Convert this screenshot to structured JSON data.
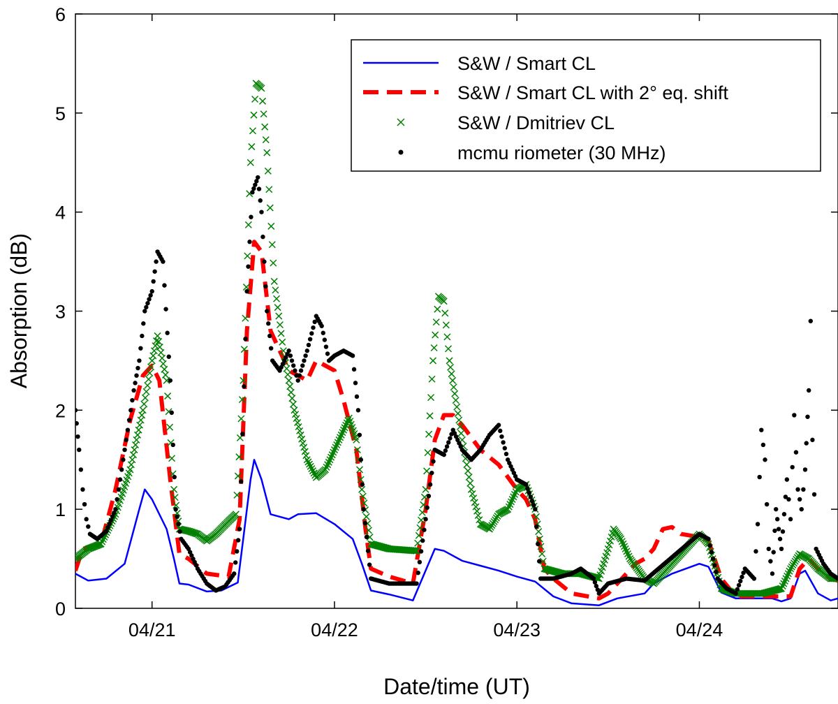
{
  "chart_data": {
    "type": "line",
    "xlabel": "Date/time (UT)",
    "ylabel": "Absorption (dB)",
    "x_unit": "day of April 2014 (UT)",
    "xlim": [
      20.58,
      24.76
    ],
    "ylim": [
      0,
      6
    ],
    "x_ticks": [
      21,
      22,
      23,
      24
    ],
    "x_tick_labels": [
      "04/21",
      "04/22",
      "04/23",
      "04/24"
    ],
    "y_ticks": [
      0,
      1,
      2,
      3,
      4,
      5,
      6
    ],
    "y_tick_labels": [
      "0",
      "1",
      "2",
      "3",
      "4",
      "5",
      "6"
    ],
    "grid": false,
    "legend_position": "top-right",
    "series": [
      {
        "name": "S&W / Smart CL",
        "style": "solid-line",
        "color": "#0000ff",
        "points": [
          [
            20.58,
            0.35
          ],
          [
            20.65,
            0.28
          ],
          [
            20.75,
            0.3
          ],
          [
            20.85,
            0.45
          ],
          [
            20.93,
            1.0
          ],
          [
            20.96,
            1.2
          ],
          [
            21.0,
            1.1
          ],
          [
            21.08,
            0.8
          ],
          [
            21.12,
            0.5
          ],
          [
            21.15,
            0.25
          ],
          [
            21.2,
            0.24
          ],
          [
            21.3,
            0.17
          ],
          [
            21.38,
            0.18
          ],
          [
            21.47,
            0.26
          ],
          [
            21.5,
            0.7
          ],
          [
            21.54,
            1.3
          ],
          [
            21.56,
            1.5
          ],
          [
            21.6,
            1.3
          ],
          [
            21.65,
            0.95
          ],
          [
            21.75,
            0.9
          ],
          [
            21.8,
            0.95
          ],
          [
            21.9,
            0.96
          ],
          [
            22.0,
            0.85
          ],
          [
            22.1,
            0.7
          ],
          [
            22.15,
            0.45
          ],
          [
            22.2,
            0.18
          ],
          [
            22.3,
            0.14
          ],
          [
            22.43,
            0.08
          ],
          [
            22.55,
            0.6
          ],
          [
            22.6,
            0.58
          ],
          [
            22.7,
            0.48
          ],
          [
            22.8,
            0.43
          ],
          [
            22.9,
            0.38
          ],
          [
            23.0,
            0.32
          ],
          [
            23.1,
            0.27
          ],
          [
            23.2,
            0.12
          ],
          [
            23.3,
            0.05
          ],
          [
            23.45,
            0.03
          ],
          [
            23.55,
            0.1
          ],
          [
            23.7,
            0.15
          ],
          [
            23.75,
            0.25
          ],
          [
            23.85,
            0.35
          ],
          [
            24.0,
            0.45
          ],
          [
            24.05,
            0.42
          ],
          [
            24.12,
            0.16
          ],
          [
            24.2,
            0.1
          ],
          [
            24.3,
            0.1
          ],
          [
            24.4,
            0.1
          ],
          [
            24.45,
            0.07
          ],
          [
            24.5,
            0.1
          ],
          [
            24.55,
            0.35
          ],
          [
            24.58,
            0.38
          ],
          [
            24.65,
            0.15
          ],
          [
            24.72,
            0.08
          ],
          [
            24.76,
            0.1
          ]
        ]
      },
      {
        "name": "S&W / Smart CL with 2° eq. shift",
        "style": "dashed-line",
        "color": "#ff0000",
        "points": [
          [
            20.58,
            0.38
          ],
          [
            20.62,
            0.6
          ],
          [
            20.72,
            0.65
          ],
          [
            20.8,
            1.2
          ],
          [
            20.88,
            1.9
          ],
          [
            20.95,
            2.35
          ],
          [
            21.0,
            2.45
          ],
          [
            21.04,
            2.3
          ],
          [
            21.1,
            1.3
          ],
          [
            21.15,
            0.55
          ],
          [
            21.2,
            0.5
          ],
          [
            21.3,
            0.35
          ],
          [
            21.42,
            0.32
          ],
          [
            21.48,
            0.9
          ],
          [
            21.52,
            2.8
          ],
          [
            21.56,
            3.7
          ],
          [
            21.6,
            3.6
          ],
          [
            21.65,
            2.8
          ],
          [
            21.75,
            2.4
          ],
          [
            21.85,
            2.3
          ],
          [
            21.9,
            2.5
          ],
          [
            22.0,
            2.4
          ],
          [
            22.05,
            2.1
          ],
          [
            22.12,
            1.6
          ],
          [
            22.17,
            0.8
          ],
          [
            22.2,
            0.4
          ],
          [
            22.3,
            0.32
          ],
          [
            22.43,
            0.25
          ],
          [
            22.5,
            1.0
          ],
          [
            22.55,
            1.7
          ],
          [
            22.6,
            1.95
          ],
          [
            22.65,
            1.95
          ],
          [
            22.7,
            1.85
          ],
          [
            22.8,
            1.6
          ],
          [
            22.9,
            1.45
          ],
          [
            23.0,
            1.2
          ],
          [
            23.05,
            1.1
          ],
          [
            23.1,
            0.9
          ],
          [
            23.15,
            0.4
          ],
          [
            23.2,
            0.3
          ],
          [
            23.3,
            0.15
          ],
          [
            23.45,
            0.1
          ],
          [
            23.5,
            0.15
          ],
          [
            23.6,
            0.35
          ],
          [
            23.65,
            0.45
          ],
          [
            23.7,
            0.5
          ],
          [
            23.75,
            0.6
          ],
          [
            23.8,
            0.8
          ],
          [
            23.85,
            0.82
          ],
          [
            23.9,
            0.75
          ],
          [
            24.0,
            0.72
          ],
          [
            24.05,
            0.68
          ],
          [
            24.12,
            0.3
          ],
          [
            24.2,
            0.12
          ],
          [
            24.35,
            0.12
          ],
          [
            24.5,
            0.12
          ],
          [
            24.55,
            0.4
          ],
          [
            24.6,
            0.5
          ],
          [
            24.65,
            0.4
          ],
          [
            24.72,
            0.3
          ],
          [
            24.76,
            0.28
          ]
        ]
      },
      {
        "name": "S&W / Dmitriev CL",
        "style": "x-markers",
        "color": "#008000",
        "points": [
          [
            20.58,
            0.5
          ],
          [
            20.65,
            0.6
          ],
          [
            20.72,
            0.65
          ],
          [
            20.8,
            0.95
          ],
          [
            20.88,
            1.4
          ],
          [
            20.95,
            2.0
          ],
          [
            21.0,
            2.5
          ],
          [
            21.03,
            2.75
          ],
          [
            21.08,
            2.3
          ],
          [
            21.12,
            1.2
          ],
          [
            21.15,
            0.8
          ],
          [
            21.2,
            0.78
          ],
          [
            21.25,
            0.75
          ],
          [
            21.3,
            0.68
          ],
          [
            21.35,
            0.75
          ],
          [
            21.42,
            0.88
          ],
          [
            21.46,
            0.95
          ],
          [
            21.5,
            2.3
          ],
          [
            21.54,
            4.5
          ],
          [
            21.57,
            5.3
          ],
          [
            21.6,
            5.25
          ],
          [
            21.63,
            4.6
          ],
          [
            21.67,
            3.3
          ],
          [
            21.72,
            2.6
          ],
          [
            21.78,
            2.0
          ],
          [
            21.85,
            1.5
          ],
          [
            21.9,
            1.32
          ],
          [
            21.95,
            1.4
          ],
          [
            22.0,
            1.6
          ],
          [
            22.05,
            1.8
          ],
          [
            22.08,
            1.92
          ],
          [
            22.12,
            1.7
          ],
          [
            22.15,
            1.2
          ],
          [
            22.2,
            0.65
          ],
          [
            22.3,
            0.6
          ],
          [
            22.45,
            0.58
          ],
          [
            22.5,
            1.2
          ],
          [
            22.54,
            2.5
          ],
          [
            22.57,
            3.15
          ],
          [
            22.6,
            3.1
          ],
          [
            22.63,
            2.5
          ],
          [
            22.7,
            1.7
          ],
          [
            22.75,
            1.2
          ],
          [
            22.8,
            0.85
          ],
          [
            22.85,
            0.8
          ],
          [
            22.9,
            0.95
          ],
          [
            22.95,
            1.0
          ],
          [
            23.0,
            1.2
          ],
          [
            23.05,
            1.25
          ],
          [
            23.1,
            1.0
          ],
          [
            23.15,
            0.4
          ],
          [
            23.25,
            0.35
          ],
          [
            23.35,
            0.35
          ],
          [
            23.45,
            0.3
          ],
          [
            23.5,
            0.6
          ],
          [
            23.53,
            0.8
          ],
          [
            23.57,
            0.7
          ],
          [
            23.62,
            0.5
          ],
          [
            23.7,
            0.3
          ],
          [
            23.75,
            0.25
          ],
          [
            24.0,
            0.75
          ],
          [
            24.05,
            0.65
          ],
          [
            24.12,
            0.2
          ],
          [
            24.2,
            0.15
          ],
          [
            24.35,
            0.15
          ],
          [
            24.45,
            0.2
          ],
          [
            24.5,
            0.4
          ],
          [
            24.55,
            0.55
          ],
          [
            24.6,
            0.5
          ],
          [
            24.65,
            0.4
          ],
          [
            24.72,
            0.3
          ],
          [
            24.76,
            0.3
          ]
        ]
      },
      {
        "name": "mcmu riometer (30 MHz)",
        "style": "dot-markers",
        "color": "#000000",
        "points": [
          [
            20.58,
            2.0
          ],
          [
            20.6,
            1.6
          ],
          [
            20.62,
            1.2
          ],
          [
            20.64,
            0.9
          ],
          [
            20.66,
            0.75
          ],
          [
            20.7,
            0.7
          ],
          [
            20.75,
            0.78
          ],
          [
            20.8,
            1.0
          ],
          [
            20.85,
            1.6
          ],
          [
            20.9,
            2.2
          ],
          [
            20.93,
            2.5
          ],
          [
            20.96,
            3.0
          ],
          [
            21.0,
            3.2
          ],
          [
            21.03,
            3.6
          ],
          [
            21.06,
            3.5
          ],
          [
            21.1,
            2.3
          ],
          [
            21.13,
            1.0
          ],
          [
            21.16,
            0.7
          ],
          [
            21.2,
            0.6
          ],
          [
            21.25,
            0.4
          ],
          [
            21.3,
            0.25
          ],
          [
            21.35,
            0.18
          ],
          [
            21.4,
            0.22
          ],
          [
            21.45,
            0.35
          ],
          [
            21.48,
            0.8
          ],
          [
            21.52,
            3.2
          ],
          [
            21.55,
            4.2
          ],
          [
            21.58,
            4.35
          ],
          [
            21.6,
            4.0
          ],
          [
            21.63,
            3.0
          ],
          [
            21.66,
            2.5
          ],
          [
            21.7,
            2.4
          ],
          [
            21.75,
            2.6
          ],
          [
            21.8,
            2.3
          ],
          [
            21.85,
            2.6
          ],
          [
            21.9,
            2.95
          ],
          [
            21.93,
            2.85
          ],
          [
            21.97,
            2.5
          ],
          [
            22.0,
            2.55
          ],
          [
            22.05,
            2.6
          ],
          [
            22.1,
            2.55
          ],
          [
            22.13,
            2.0
          ],
          [
            22.16,
            1.0
          ],
          [
            22.2,
            0.3
          ],
          [
            22.3,
            0.25
          ],
          [
            22.45,
            0.25
          ],
          [
            22.5,
            0.9
          ],
          [
            22.55,
            1.6
          ],
          [
            22.6,
            1.55
          ],
          [
            22.65,
            1.8
          ],
          [
            22.7,
            1.6
          ],
          [
            22.75,
            1.5
          ],
          [
            22.8,
            1.6
          ],
          [
            22.85,
            1.75
          ],
          [
            22.9,
            1.85
          ],
          [
            22.95,
            1.5
          ],
          [
            23.0,
            1.3
          ],
          [
            23.05,
            1.25
          ],
          [
            23.1,
            1.0
          ],
          [
            23.13,
            0.3
          ],
          [
            23.2,
            0.3
          ],
          [
            23.3,
            0.35
          ],
          [
            23.35,
            0.4
          ],
          [
            23.42,
            0.3
          ],
          [
            23.45,
            0.15
          ],
          [
            23.5,
            0.25
          ],
          [
            23.6,
            0.3
          ],
          [
            23.7,
            0.28
          ],
          [
            24.0,
            0.75
          ],
          [
            24.05,
            0.7
          ],
          [
            24.1,
            0.3
          ],
          [
            24.15,
            0.2
          ],
          [
            24.2,
            0.15
          ],
          [
            24.25,
            0.4
          ],
          [
            24.3,
            0.3
          ],
          [
            24.32,
            0.85
          ],
          [
            24.34,
            1.8
          ],
          [
            24.36,
            1.5
          ],
          [
            24.38,
            0.6
          ],
          [
            24.4,
            0.35
          ],
          [
            24.42,
            1.0
          ],
          [
            24.45,
            0.6
          ],
          [
            24.48,
            1.3
          ],
          [
            24.5,
            0.9
          ],
          [
            24.52,
            1.95
          ],
          [
            24.54,
            1.2
          ],
          [
            24.56,
            1.0
          ],
          [
            24.58,
            1.4
          ],
          [
            24.6,
            2.2
          ],
          [
            24.61,
            2.9
          ],
          [
            24.62,
            1.7
          ],
          [
            24.64,
            0.6
          ],
          [
            24.68,
            0.45
          ],
          [
            24.72,
            0.35
          ],
          [
            24.76,
            0.3
          ]
        ]
      }
    ]
  }
}
